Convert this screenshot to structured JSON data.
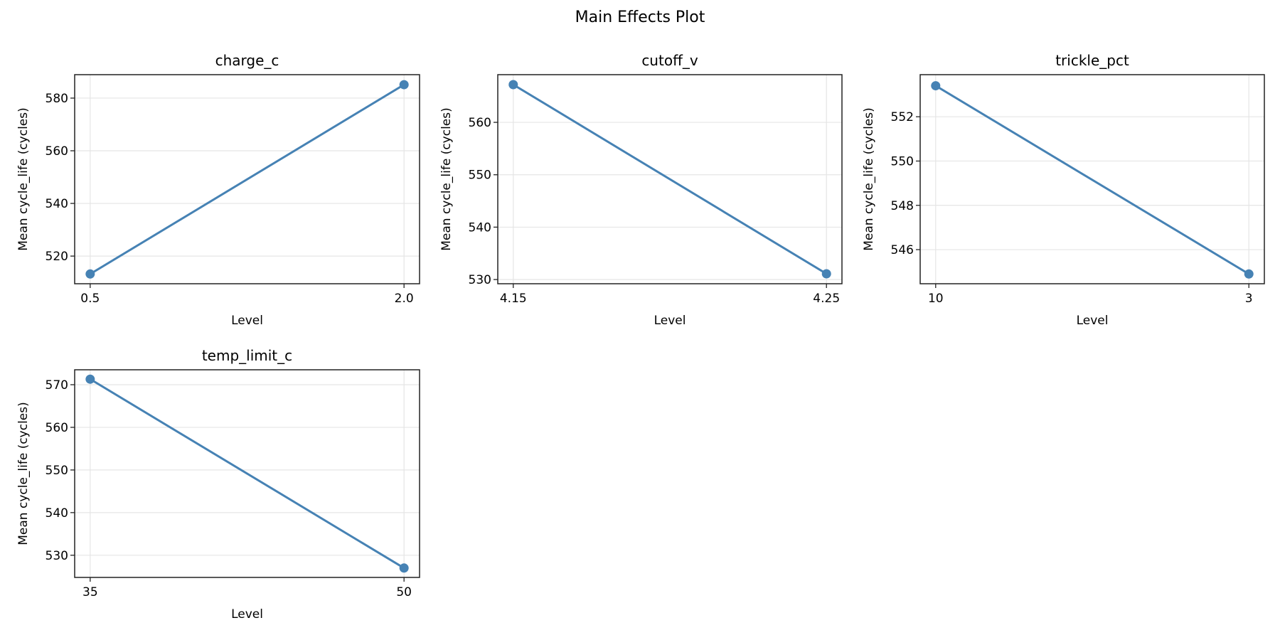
{
  "figure": {
    "title": "Main Effects Plot"
  },
  "style": {
    "line_color": "#4682b4",
    "grid_color": "#e5e5e5",
    "axis_color": "#222222"
  },
  "chart_data": [
    {
      "type": "line",
      "title": "charge_c",
      "xlabel": "Level",
      "ylabel": "Mean cycle_life (cycles)",
      "categories": [
        "0.5",
        "2.0"
      ],
      "values": [
        513.2,
        585.1
      ],
      "yticks": [
        520,
        540,
        560,
        580
      ],
      "ylim": [
        509.5,
        588.9
      ],
      "grid": true,
      "row": 0,
      "col": 0
    },
    {
      "type": "line",
      "title": "cutoff_v",
      "xlabel": "Level",
      "ylabel": "Mean cycle_life (cycles)",
      "categories": [
        "4.15",
        "4.25"
      ],
      "values": [
        567.2,
        531.1
      ],
      "yticks": [
        530,
        540,
        550,
        560
      ],
      "ylim": [
        529.2,
        569.1
      ],
      "grid": true,
      "row": 0,
      "col": 1
    },
    {
      "type": "line",
      "title": "trickle_pct",
      "xlabel": "Level",
      "ylabel": "Mean cycle_life (cycles)",
      "categories": [
        "10",
        "3"
      ],
      "values": [
        553.4,
        544.9
      ],
      "yticks": [
        546,
        548,
        550,
        552
      ],
      "ylim": [
        544.46,
        553.9
      ],
      "grid": true,
      "row": 0,
      "col": 2
    },
    {
      "type": "line",
      "title": "temp_limit_c",
      "xlabel": "Level",
      "ylabel": "Mean cycle_life (cycles)",
      "categories": [
        "35",
        "50"
      ],
      "values": [
        571.3,
        527.0
      ],
      "yticks": [
        530,
        540,
        550,
        560,
        570
      ],
      "ylim": [
        524.8,
        573.5
      ],
      "grid": true,
      "row": 1,
      "col": 0
    }
  ]
}
